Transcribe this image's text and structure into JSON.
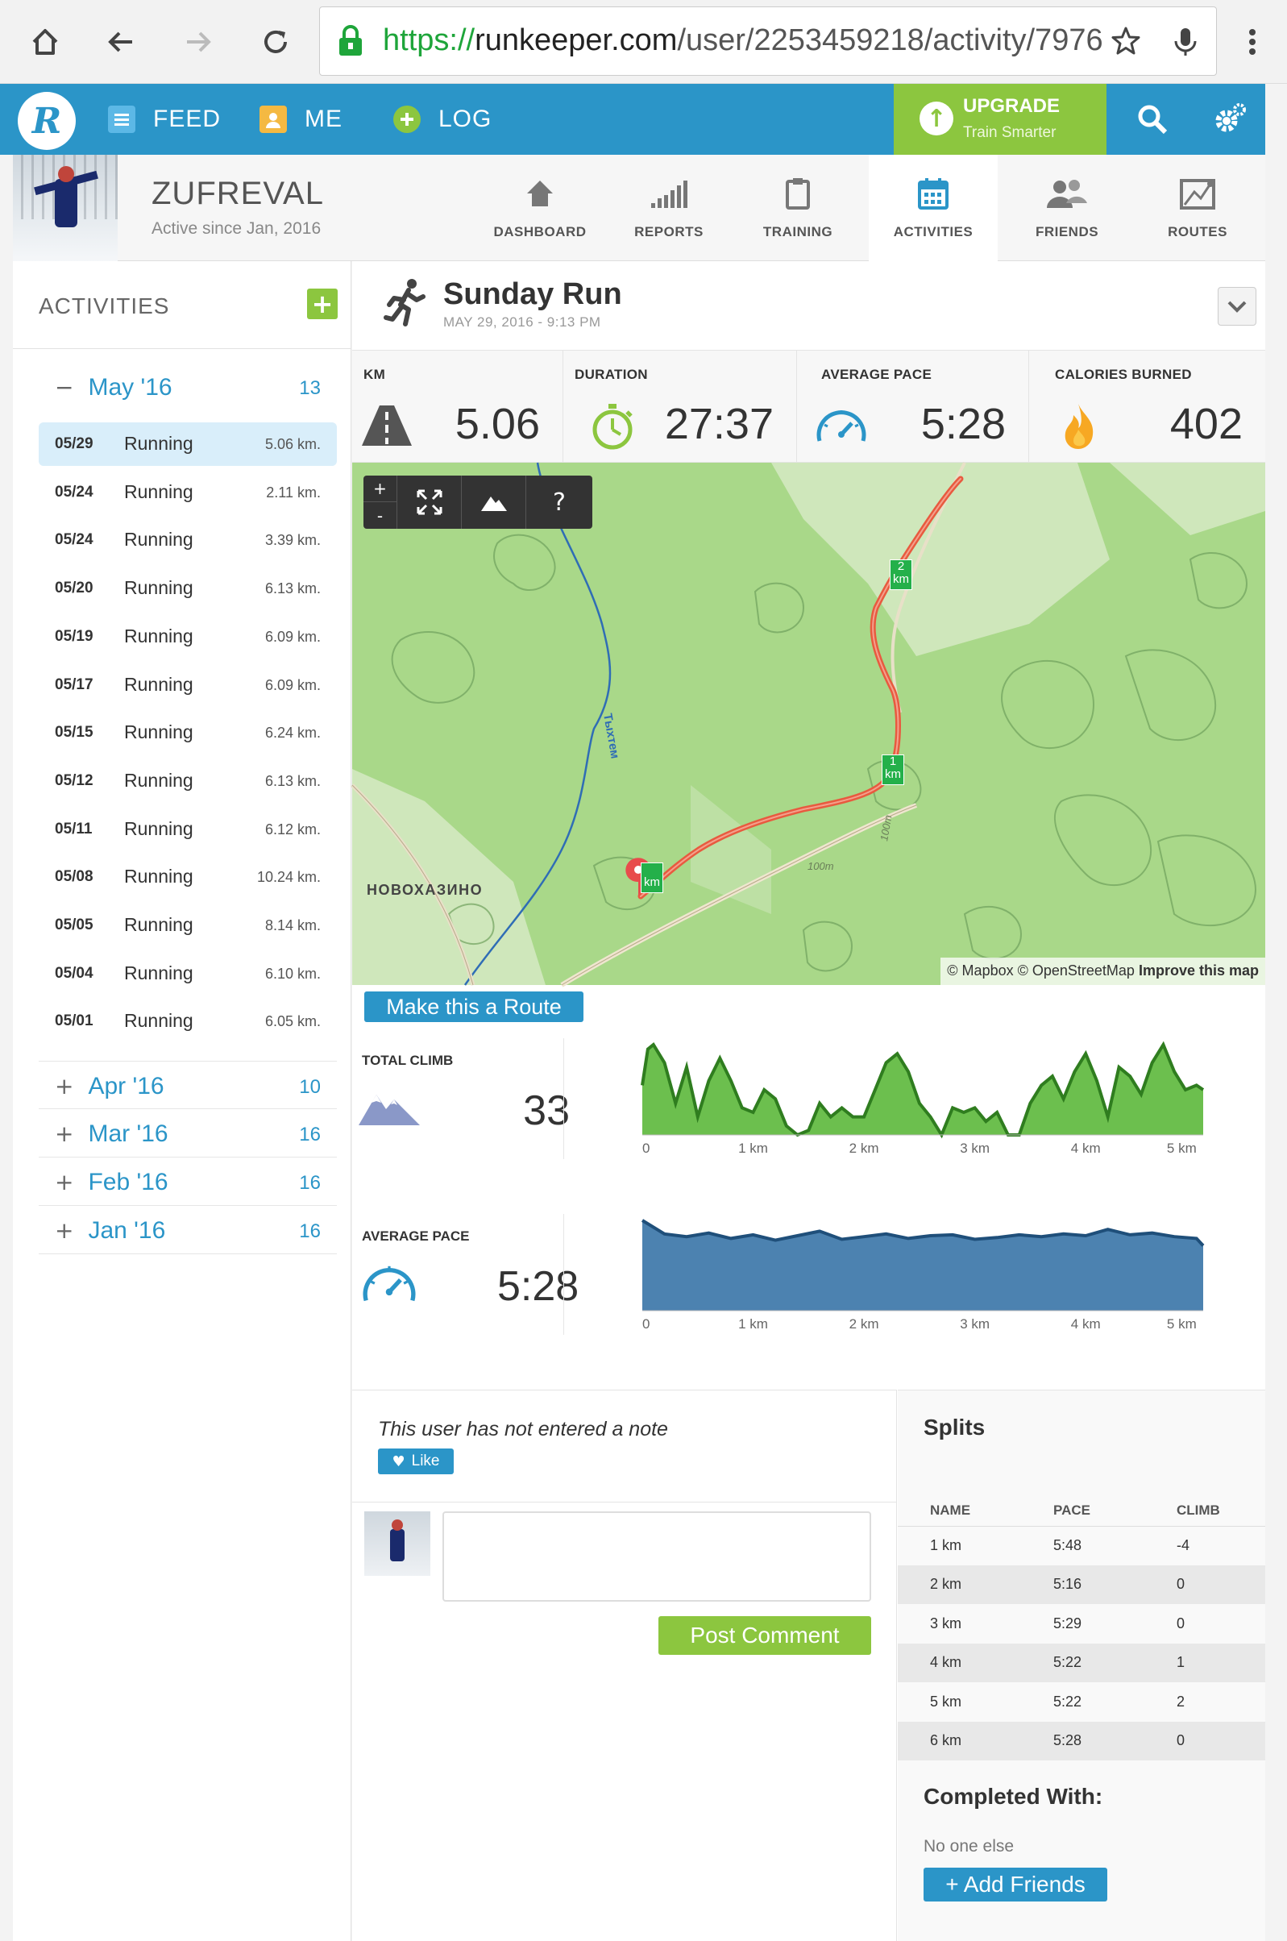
{
  "browser": {
    "url_scheme": "https://",
    "url_host": "runkeeper.com",
    "url_path": "/user/2253459218/activity/7976"
  },
  "header": {
    "nav": [
      {
        "label": "FEED",
        "icon": "feed-icon"
      },
      {
        "label": "ME",
        "icon": "person-icon"
      },
      {
        "label": "LOG",
        "icon": "plus-circle-icon"
      }
    ],
    "upgrade_title": "UPGRADE",
    "upgrade_subtitle": "Train Smarter"
  },
  "profile": {
    "username": "ZUFREVAL",
    "active_since": "Active since Jan, 2016",
    "tabs": [
      {
        "label": "DASHBOARD",
        "icon": "home-icon",
        "active": false
      },
      {
        "label": "REPORTS",
        "icon": "bar-chart-icon",
        "active": false
      },
      {
        "label": "TRAINING",
        "icon": "clipboard-icon",
        "active": false
      },
      {
        "label": "ACTIVITIES",
        "icon": "calendar-icon",
        "active": true
      },
      {
        "label": "FRIENDS",
        "icon": "friends-icon",
        "active": false
      },
      {
        "label": "ROUTES",
        "icon": "map-icon",
        "active": false
      }
    ]
  },
  "sidebar": {
    "title": "ACTIVITIES",
    "expanded_month": {
      "label": "May '16",
      "count": "13",
      "sign": "−"
    },
    "activities": [
      {
        "date": "05/29",
        "name": "Running",
        "km": "5.06 km.",
        "selected": true
      },
      {
        "date": "05/24",
        "name": "Running",
        "km": "2.11 km."
      },
      {
        "date": "05/24",
        "name": "Running",
        "km": "3.39 km."
      },
      {
        "date": "05/20",
        "name": "Running",
        "km": "6.13 km."
      },
      {
        "date": "05/19",
        "name": "Running",
        "km": "6.09 km."
      },
      {
        "date": "05/17",
        "name": "Running",
        "km": "6.09 km."
      },
      {
        "date": "05/15",
        "name": "Running",
        "km": "6.24 km."
      },
      {
        "date": "05/12",
        "name": "Running",
        "km": "6.13 km."
      },
      {
        "date": "05/11",
        "name": "Running",
        "km": "6.12 km."
      },
      {
        "date": "05/08",
        "name": "Running",
        "km": "10.24 km."
      },
      {
        "date": "05/05",
        "name": "Running",
        "km": "8.14 km."
      },
      {
        "date": "05/04",
        "name": "Running",
        "km": "6.10 km."
      },
      {
        "date": "05/01",
        "name": "Running",
        "km": "6.05 km."
      }
    ],
    "collapsed_months": [
      {
        "label": "Apr '16",
        "count": "10",
        "sign": "+"
      },
      {
        "label": "Mar '16",
        "count": "16",
        "sign": "+"
      },
      {
        "label": "Feb '16",
        "count": "16",
        "sign": "+"
      },
      {
        "label": "Jan '16",
        "count": "16",
        "sign": "+"
      }
    ]
  },
  "activity": {
    "title": "Sunday Run",
    "date": "MAY 29, 2016  -  9:13 PM",
    "stats": [
      {
        "label": "KM",
        "value": "5.06",
        "icon": "road-icon"
      },
      {
        "label": "DURATION",
        "value": "27:37",
        "icon": "stopwatch-icon"
      },
      {
        "label": "AVERAGE PACE",
        "value": "5:28",
        "icon": "speedometer-icon"
      },
      {
        "label": "CALORIES BURNED",
        "value": "402",
        "icon": "flame-icon"
      }
    ]
  },
  "map": {
    "zoom_in": "+",
    "zoom_out": "-",
    "help": "?",
    "place_label": "НОВОХАЗИНО",
    "river_label": "Тыхтем",
    "contour_labels": [
      "100m",
      "100m"
    ],
    "km_markers": [
      "1",
      "2"
    ],
    "km_unit": "km",
    "attribution": "© Mapbox © OpenStreetMap",
    "improve_link": "Improve this map",
    "route_button": "Make this a Route"
  },
  "chart_data": [
    {
      "type": "area",
      "title": "TOTAL CLIMB",
      "value": "33",
      "color": "#6cbf4e",
      "x_ticks": [
        "0",
        "1 km",
        "2 km",
        "3 km",
        "4 km",
        "5 km"
      ],
      "x": [
        0,
        0.05,
        0.1,
        0.2,
        0.3,
        0.4,
        0.5,
        0.6,
        0.7,
        0.8,
        0.9,
        1.0,
        1.1,
        1.2,
        1.3,
        1.4,
        1.5,
        1.6,
        1.7,
        1.8,
        1.9,
        2.0,
        2.1,
        2.2,
        2.3,
        2.4,
        2.5,
        2.6,
        2.7,
        2.8,
        2.9,
        3.0,
        3.1,
        3.2,
        3.3,
        3.4,
        3.5,
        3.6,
        3.7,
        3.8,
        3.9,
        4.0,
        4.1,
        4.2,
        4.3,
        4.4,
        4.5,
        4.6,
        4.7,
        4.8,
        4.9,
        5.0,
        5.06
      ],
      "y": [
        0.55,
        0.95,
        1.0,
        0.8,
        0.35,
        0.75,
        0.2,
        0.6,
        0.85,
        0.6,
        0.3,
        0.25,
        0.5,
        0.4,
        0.1,
        0.0,
        0.05,
        0.35,
        0.2,
        0.3,
        0.2,
        0.2,
        0.5,
        0.8,
        0.9,
        0.7,
        0.35,
        0.2,
        0.0,
        0.3,
        0.25,
        0.3,
        0.15,
        0.25,
        0.0,
        0.0,
        0.35,
        0.55,
        0.65,
        0.4,
        0.7,
        0.9,
        0.6,
        0.2,
        0.75,
        0.65,
        0.45,
        0.8,
        1.0,
        0.7,
        0.5,
        0.55,
        0.5
      ],
      "xlim": [
        0,
        5.06
      ]
    },
    {
      "type": "area",
      "title": "AVERAGE PACE",
      "value": "5:28",
      "color": "#4c82b0",
      "x_ticks": [
        "0",
        "1 km",
        "2 km",
        "3 km",
        "4 km",
        "5 km"
      ],
      "x": [
        0,
        0.2,
        0.4,
        0.6,
        0.8,
        1.0,
        1.2,
        1.4,
        1.6,
        1.8,
        2.0,
        2.2,
        2.4,
        2.6,
        2.8,
        3.0,
        3.2,
        3.4,
        3.6,
        3.8,
        4.0,
        4.2,
        4.4,
        4.6,
        4.8,
        5.0,
        5.06
      ],
      "y": [
        1.0,
        0.85,
        0.82,
        0.86,
        0.8,
        0.84,
        0.78,
        0.83,
        0.88,
        0.79,
        0.82,
        0.85,
        0.8,
        0.83,
        0.84,
        0.79,
        0.81,
        0.84,
        0.82,
        0.85,
        0.83,
        0.9,
        0.84,
        0.86,
        0.82,
        0.8,
        0.72
      ],
      "xlim": [
        0,
        5.06
      ]
    }
  ],
  "note": {
    "text": "This user has not entered a note",
    "like_label": "Like",
    "post_label": "Post Comment"
  },
  "splits": {
    "title": "Splits",
    "headers": [
      "NAME",
      "PACE",
      "CLIMB"
    ],
    "rows": [
      [
        "1 km",
        "5:48",
        "-4"
      ],
      [
        "2 km",
        "5:16",
        "0"
      ],
      [
        "3 km",
        "5:29",
        "0"
      ],
      [
        "4 km",
        "5:22",
        "1"
      ],
      [
        "5 km",
        "5:22",
        "2"
      ],
      [
        "6 km",
        "5:28",
        "0"
      ]
    ],
    "completed_title": "Completed With:",
    "completed_text": "No one else",
    "add_friends": "+ Add Friends"
  }
}
